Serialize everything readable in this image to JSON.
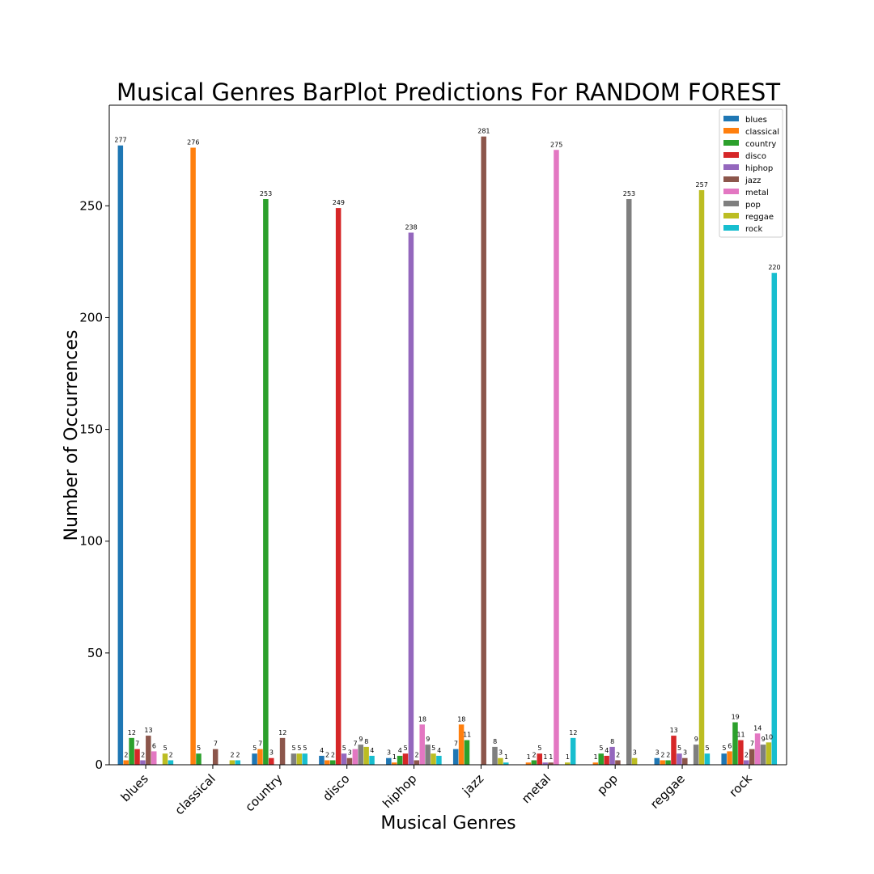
{
  "chart_data": {
    "type": "bar",
    "title": "Musical Genres BarPlot Predictions For RANDOM FOREST",
    "xlabel": "Musical Genres",
    "ylabel": "Number of Occurrences",
    "ylim": [
      0,
      295
    ],
    "yticks": [
      0,
      50,
      100,
      150,
      200,
      250
    ],
    "grid": false,
    "legend_position": "top-right",
    "categories": [
      "blues",
      "classical",
      "country",
      "disco",
      "hiphop",
      "jazz",
      "metal",
      "pop",
      "reggae",
      "rock"
    ],
    "series": [
      {
        "name": "blues",
        "color": "#1f77b4",
        "values": [
          277,
          0,
          5,
          4,
          3,
          7,
          0,
          0,
          3,
          5
        ]
      },
      {
        "name": "classical",
        "color": "#ff7f0e",
        "values": [
          2,
          276,
          7,
          2,
          1,
          18,
          1,
          1,
          2,
          6
        ]
      },
      {
        "name": "country",
        "color": "#2ca02c",
        "values": [
          12,
          5,
          253,
          2,
          4,
          11,
          2,
          5,
          2,
          19
        ]
      },
      {
        "name": "disco",
        "color": "#d62728",
        "values": [
          7,
          0,
          3,
          249,
          5,
          0,
          5,
          4,
          13,
          11
        ]
      },
      {
        "name": "hiphop",
        "color": "#9467bd",
        "values": [
          2,
          0,
          0,
          5,
          238,
          0,
          1,
          8,
          5,
          2
        ]
      },
      {
        "name": "jazz",
        "color": "#8c564b",
        "values": [
          13,
          7,
          12,
          3,
          2,
          281,
          1,
          2,
          3,
          7
        ]
      },
      {
        "name": "metal",
        "color": "#e377c2",
        "values": [
          6,
          0,
          0,
          7,
          18,
          0,
          275,
          0,
          0,
          14
        ]
      },
      {
        "name": "pop",
        "color": "#7f7f7f",
        "values": [
          0,
          0,
          5,
          9,
          9,
          8,
          0,
          253,
          9,
          9
        ]
      },
      {
        "name": "reggae",
        "color": "#bcbd22",
        "values": [
          5,
          2,
          5,
          8,
          5,
          3,
          1,
          3,
          257,
          10
        ]
      },
      {
        "name": "rock",
        "color": "#17becf",
        "values": [
          2,
          2,
          5,
          4,
          4,
          1,
          12,
          0,
          5,
          220
        ]
      }
    ]
  }
}
